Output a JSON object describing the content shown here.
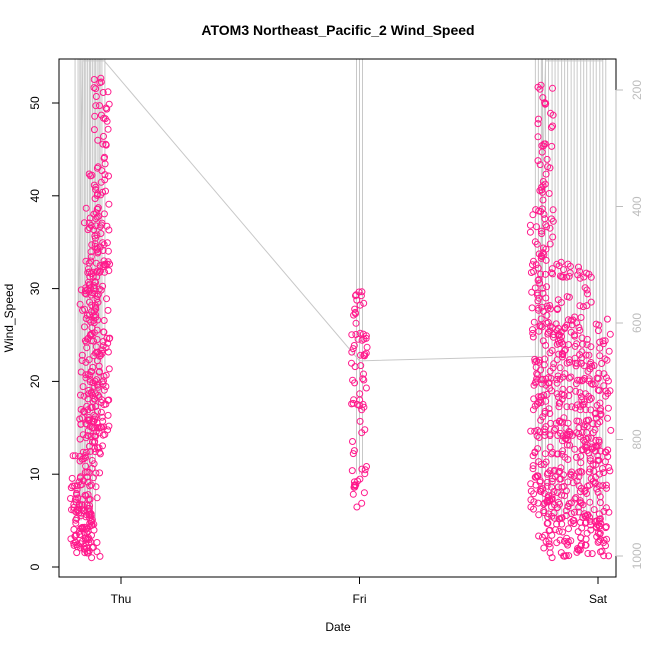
{
  "chart_data": {
    "type": "scatter",
    "title": "ATOM3 Northeast_Pacific_2 Wind_Speed",
    "xlabel": "Date",
    "ylabel": "Wind_Speed",
    "x_ticks": [
      "Thu",
      "Fri",
      "Sat"
    ],
    "ylim": [
      0,
      55
    ],
    "y_ticks": [
      0,
      10,
      20,
      30,
      40,
      50
    ],
    "y2_ticks": [
      200,
      400,
      600,
      800,
      1000
    ],
    "y2lim": [
      1020,
      140
    ],
    "grid": false,
    "legend": "none",
    "colors": {
      "points": "#ff1a8c",
      "pressure_line": "#c8c8c8",
      "right_axis": "#bdbdbd"
    },
    "series": [
      {
        "values_x_days": [
          -0.18,
          -0.17,
          -0.16,
          -0.15,
          -0.14,
          -0.13,
          -0.12,
          -0.11,
          -0.1,
          -0.09,
          -0.08,
          -0.07,
          -0.06,
          -0.05,
          -0.04,
          -0.03,
          -0.02,
          -0.01,
          0.0
        ]
      }
    ],
    "clusters": [
      {
        "x_day": -0.18,
        "y_range": [
          1.0,
          12.5
        ]
      },
      {
        "x_day": -0.16,
        "y_range": [
          2.0,
          10.0
        ]
      },
      {
        "x_day": -0.14,
        "y_range": [
          1.5,
          33.0
        ]
      },
      {
        "x_day": -0.12,
        "y_range": [
          1.0,
          39.0
        ]
      },
      {
        "x_day": -0.1,
        "y_range": [
          12.0,
          43.0
        ]
      },
      {
        "x_day": -0.08,
        "y_range": [
          14.0,
          53.0
        ]
      },
      {
        "x_day": 1.0,
        "y_range": [
          6.0,
          30.0
        ]
      },
      {
        "x_day": 1.75,
        "y_range": [
          6.0,
          39.0
        ]
      },
      {
        "x_day": 1.78,
        "y_range": [
          1.0,
          52.0
        ]
      },
      {
        "x_day": 1.82,
        "y_range": [
          1.0,
          30.0
        ]
      },
      {
        "x_day": 1.86,
        "y_range": [
          1.0,
          33.0
        ]
      },
      {
        "x_day": 1.9,
        "y_range": [
          1.5,
          27.0
        ]
      },
      {
        "x_day": 1.94,
        "y_range": [
          1.0,
          33.0
        ]
      },
      {
        "x_day": 1.98,
        "y_range": [
          1.0,
          24.0
        ]
      },
      {
        "x_day": 2.02,
        "y_range": [
          1.0,
          27.0
        ]
      }
    ],
    "pressure_line_y2": [
      {
        "x_day": -0.18,
        "y2": 600
      },
      {
        "x_day": -0.16,
        "y2": 150
      },
      {
        "x_day": -0.13,
        "y2": 150
      },
      {
        "x_day": -0.07,
        "y2": 150
      },
      {
        "x_day": 1.0,
        "y2": 665
      },
      {
        "x_day": 1.75,
        "y2": 657
      },
      {
        "x_day": 1.78,
        "y2": 150
      },
      {
        "x_day": 1.82,
        "y2": 150
      },
      {
        "x_day": 2.02,
        "y2": 150
      }
    ]
  }
}
